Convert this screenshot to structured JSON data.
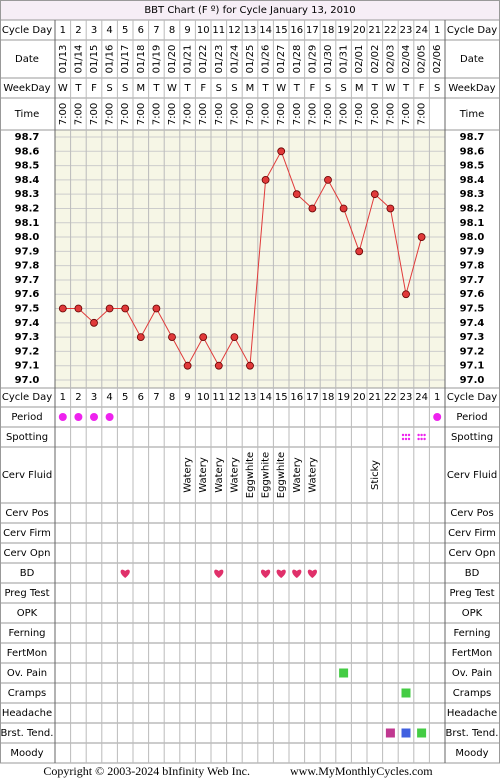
{
  "title": "BBT Chart (F º) for Cycle January 13, 2010",
  "header_labels": {
    "cycle_day": "Cycle Day",
    "date": "Date",
    "weekday": "WeekDay",
    "time": "Time"
  },
  "cycle_days": [
    1,
    2,
    3,
    4,
    5,
    6,
    7,
    8,
    9,
    10,
    11,
    12,
    13,
    14,
    15,
    16,
    17,
    18,
    19,
    20,
    21,
    22,
    23,
    24,
    1
  ],
  "dates": [
    "01/13",
    "01/14",
    "01/15",
    "01/16",
    "01/17",
    "01/18",
    "01/19",
    "01/20",
    "01/21",
    "01/22",
    "01/23",
    "01/24",
    "01/25",
    "01/26",
    "01/27",
    "01/28",
    "01/29",
    "01/30",
    "01/31",
    "02/01",
    "02/02",
    "02/03",
    "02/04",
    "02/05",
    "02/06"
  ],
  "weekdays": [
    "W",
    "T",
    "F",
    "S",
    "S",
    "M",
    "T",
    "W",
    "T",
    "F",
    "S",
    "S",
    "M",
    "T",
    "W",
    "T",
    "F",
    "S",
    "S",
    "M",
    "T",
    "W",
    "T",
    "F",
    "S"
  ],
  "times": [
    "7:00",
    "7:00",
    "7:00",
    "7:00",
    "7:00",
    "7:00",
    "7:00",
    "7:00",
    "7:00",
    "7:00",
    "7:00",
    "7:00",
    "7:00",
    "7:00",
    "7:00",
    "7:00",
    "7:00",
    "7:00",
    "7:00",
    "7:00",
    "7:00",
    "7:00",
    "7:00",
    "7:00",
    null
  ],
  "chart_data": {
    "type": "line",
    "color": "#e03a3a",
    "values": [
      97.5,
      97.5,
      97.4,
      97.5,
      97.5,
      97.3,
      97.5,
      97.3,
      97.1,
      97.3,
      97.1,
      97.3,
      97.1,
      98.4,
      98.6,
      98.3,
      98.2,
      98.4,
      98.2,
      97.9,
      98.3,
      98.2,
      97.6,
      98.0,
      null
    ],
    "ylim": [
      97.0,
      98.7
    ],
    "yticks": [
      {
        "value": 97.0,
        "label": "97.0"
      },
      97.1,
      97.2,
      97.3,
      97.4,
      97.5,
      97.6,
      97.7,
      97.8,
      97.9,
      {
        "value": 98.0,
        "label": "98.0"
      },
      98.1,
      98.2,
      98.3,
      98.4,
      98.5,
      98.6,
      98.7
    ],
    "grid": true
  },
  "cerv_fluid": {
    "label": "Cerv Fluid",
    "entries": [
      null,
      null,
      null,
      null,
      null,
      null,
      null,
      null,
      "Watery",
      "Watery",
      "Watery",
      "Watery",
      "Eggwhite",
      "Eggwhite",
      "Eggwhite",
      "Watery",
      "Watery",
      null,
      null,
      null,
      "Sticky",
      null,
      null,
      null,
      null
    ]
  },
  "rows": [
    {
      "label": "Period",
      "columns": [
        1,
        2,
        3,
        4,
        25
      ],
      "shape": "dot",
      "color": "#ee22ee"
    },
    {
      "label": "Spotting",
      "columns": [
        23,
        24
      ],
      "shape": "dots",
      "color": "#ee22ee"
    },
    {
      "label": "Cerv Pos",
      "columns": []
    },
    {
      "label": "Cerv Firm",
      "columns": []
    },
    {
      "label": "Cerv Opn",
      "columns": []
    },
    {
      "label": "BD",
      "columns": [
        5,
        11,
        14,
        15,
        16,
        17
      ],
      "shape": "heart",
      "color": "#e0306a"
    },
    {
      "label": "Preg Test",
      "columns": []
    },
    {
      "label": "OPK",
      "columns": []
    },
    {
      "label": "Ferning",
      "columns": []
    },
    {
      "label": "FertMon",
      "columns": []
    },
    {
      "label": "Ov. Pain",
      "columns": [
        19
      ],
      "shape": "square",
      "color": "#44cc44"
    },
    {
      "label": "Cramps",
      "columns": [
        23
      ],
      "shape": "square",
      "color": "#44cc44"
    },
    {
      "label": "Headache",
      "columns": []
    },
    {
      "label": "Brst. Tend.",
      "columns": [
        22,
        23,
        24
      ],
      "shape": "square",
      "colors": [
        "#c03890",
        "#4060e0",
        "#44cc44"
      ]
    },
    {
      "label": "Moody",
      "columns": []
    }
  ],
  "footer": "Copyright © 2003-2024 bInfinity Web Inc.",
  "footer_url": "www.MyMonthlyCycles.com"
}
